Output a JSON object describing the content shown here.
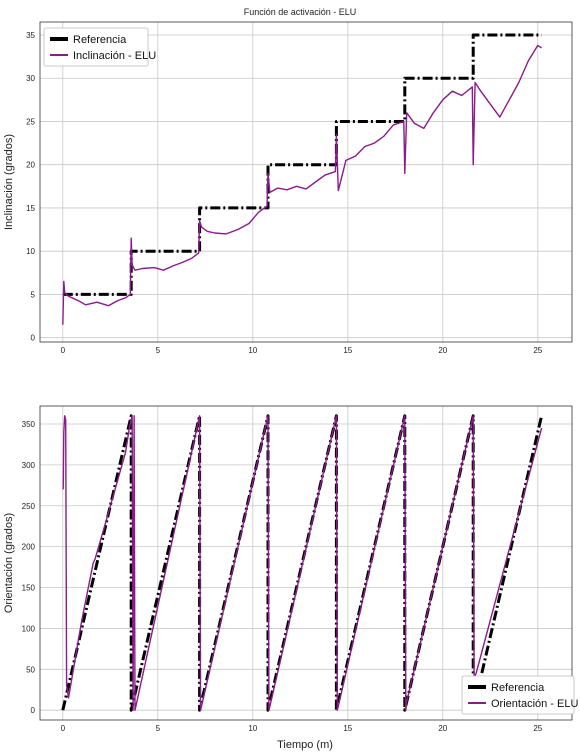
{
  "figure": {
    "title": "Función de activación - ELU",
    "xlabel": "Tiempo (m)"
  },
  "chart_data": [
    {
      "type": "line",
      "title": "Función de activación - ELU",
      "xlabel": "",
      "ylabel": "Inclinación (grados)",
      "xlim": [
        -1.2,
        26.8
      ],
      "ylim": [
        -0.5,
        36.5
      ],
      "xticks": [
        0,
        5,
        10,
        15,
        20,
        25
      ],
      "yticks": [
        0,
        5,
        10,
        15,
        20,
        25,
        30,
        35
      ],
      "grid": true,
      "legend": "top-left",
      "series": [
        {
          "name": "Referencia",
          "style": "dashdot",
          "color": "#000000",
          "x": [
            0,
            3.6,
            3.6,
            7.2,
            7.2,
            10.8,
            10.8,
            14.4,
            14.4,
            18.0,
            18.0,
            21.6,
            21.6,
            25.2
          ],
          "y": [
            5,
            5,
            10,
            10,
            15,
            15,
            20,
            20,
            25,
            25,
            30,
            30,
            35,
            35
          ]
        },
        {
          "name": "Inclinación - ELU",
          "style": "solid",
          "color": "#8b1a8b",
          "x": [
            0,
            0.05,
            0.1,
            0.3,
            0.8,
            1.2,
            1.8,
            2.4,
            2.9,
            3.3,
            3.55,
            3.6,
            3.65,
            3.8,
            4.2,
            4.8,
            5.3,
            5.8,
            6.3,
            6.8,
            7.15,
            7.2,
            7.3,
            7.6,
            8.0,
            8.6,
            9.2,
            9.8,
            10.3,
            10.75,
            10.8,
            10.9,
            11.3,
            11.8,
            12.3,
            12.8,
            13.3,
            13.8,
            14.35,
            14.4,
            14.5,
            14.9,
            15.4,
            15.9,
            16.4,
            16.9,
            17.4,
            17.95,
            18.0,
            18.1,
            18.5,
            19.0,
            19.5,
            20.0,
            20.5,
            21.0,
            21.55,
            21.6,
            21.7,
            22.0,
            22.5,
            23.0,
            23.5,
            24.0,
            24.5,
            25.0,
            25.2
          ],
          "y": [
            1.5,
            6.5,
            5.2,
            4.8,
            4.3,
            3.8,
            4.1,
            3.7,
            4.3,
            4.6,
            5.0,
            11.5,
            8.4,
            7.8,
            8.0,
            8.1,
            7.8,
            8.3,
            8.7,
            9.2,
            9.8,
            13.5,
            12.8,
            12.3,
            12.1,
            12.0,
            12.5,
            13.2,
            14.5,
            15.2,
            19.0,
            16.8,
            17.3,
            17.1,
            17.5,
            17.2,
            18.0,
            18.8,
            19.2,
            23.5,
            17.0,
            20.5,
            21.0,
            22.1,
            22.5,
            23.3,
            24.6,
            25.0,
            19.0,
            26.0,
            24.8,
            24.2,
            26.0,
            27.5,
            28.5,
            28.0,
            29.0,
            20.0,
            29.5,
            28.5,
            27.0,
            25.5,
            27.5,
            29.5,
            32.0,
            33.8,
            33.5
          ]
        }
      ]
    },
    {
      "type": "line",
      "title": "",
      "xlabel": "Tiempo (m)",
      "ylabel": "Orientación (grados)",
      "xlim": [
        -1.2,
        26.8
      ],
      "ylim": [
        -12,
        372
      ],
      "xticks": [
        0,
        5,
        10,
        15,
        20,
        25
      ],
      "yticks": [
        0,
        50,
        100,
        150,
        200,
        250,
        300,
        350
      ],
      "grid": true,
      "legend": "bottom-right",
      "series": [
        {
          "name": "Referencia",
          "style": "dashdot",
          "color": "#000000",
          "x": [
            0,
            3.6,
            3.6,
            7.2,
            7.2,
            10.8,
            10.8,
            14.4,
            14.4,
            18.0,
            18.0,
            21.6,
            21.6,
            25.2
          ],
          "y": [
            0,
            360,
            0,
            360,
            0,
            360,
            0,
            360,
            0,
            360,
            0,
            360,
            0,
            360
          ]
        },
        {
          "name": "Orientación - ELU",
          "style": "solid",
          "color": "#8b1a8b",
          "x": [
            0.02,
            0.05,
            0.1,
            0.15,
            0.2,
            0.3,
            1.0,
            1.6,
            1.7,
            2.2,
            3.3,
            3.5,
            3.65,
            3.7,
            3.75,
            3.8,
            7.2,
            7.25,
            7.3,
            10.8,
            10.85,
            10.9,
            14.4,
            14.45,
            14.5,
            18.0,
            18.05,
            18.1,
            21.6,
            21.65,
            21.75,
            25.2
          ],
          "y": [
            270,
            340,
            360,
            355,
            30,
            15,
            110,
            180,
            185,
            225,
            315,
            345,
            360,
            0,
            360,
            0,
            360,
            0,
            5,
            360,
            0,
            5,
            360,
            0,
            5,
            360,
            0,
            10,
            360,
            40,
            45,
            345
          ]
        }
      ]
    }
  ]
}
